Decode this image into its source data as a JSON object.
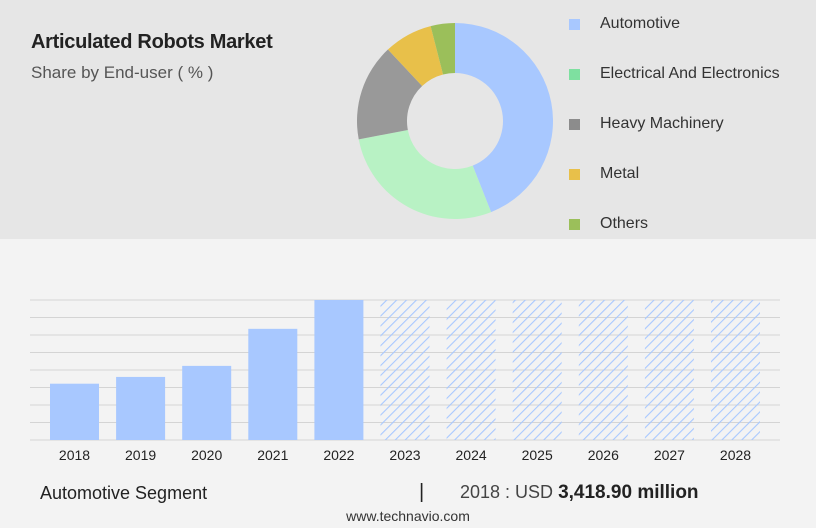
{
  "header": {
    "title": "Articulated Robots Market",
    "subtitle": "Share by End-user ( % )"
  },
  "legend": [
    {
      "label": "Automotive",
      "color": "#a8c8ff"
    },
    {
      "label": "Electrical And Electronics",
      "color": "#7ee0a0"
    },
    {
      "label": "Heavy Machinery",
      "color": "#8c8c8c"
    },
    {
      "label": "Metal",
      "color": "#e8c04a"
    },
    {
      "label": "Others",
      "color": "#9bbf5a"
    }
  ],
  "chart_data": [
    {
      "type": "pie",
      "title": "Share by End-user ( % )",
      "donut": true,
      "series": [
        {
          "name": "Automotive",
          "value": 44,
          "color": "#a8c8ff"
        },
        {
          "name": "Electrical And Electronics",
          "value": 28,
          "color": "#b8f2c4"
        },
        {
          "name": "Heavy Machinery",
          "value": 16,
          "color": "#999999"
        },
        {
          "name": "Metal",
          "value": 8,
          "color": "#e8c04a"
        },
        {
          "name": "Others",
          "value": 4,
          "color": "#9bbf5a"
        }
      ]
    },
    {
      "type": "bar",
      "title": "Automotive Segment",
      "categories": [
        "2018",
        "2019",
        "2020",
        "2021",
        "2022",
        "2023",
        "2024",
        "2025",
        "2026",
        "2027",
        "2028"
      ],
      "values": [
        3418.9,
        3830,
        4500,
        6750,
        8500,
        null,
        null,
        null,
        null,
        null,
        null
      ],
      "forecast": [
        false,
        false,
        false,
        false,
        false,
        true,
        true,
        true,
        true,
        true,
        true
      ],
      "ylim": [
        0,
        8500
      ],
      "grid": true,
      "bar_color": "#a8c8ff",
      "forecast_color": "#a8c8ff"
    }
  ],
  "footer": {
    "segment": "Automotive Segment",
    "separator": "|",
    "year_label": "2018 : USD",
    "amount": "3,418.90 million",
    "source": "www.technavio.com"
  }
}
